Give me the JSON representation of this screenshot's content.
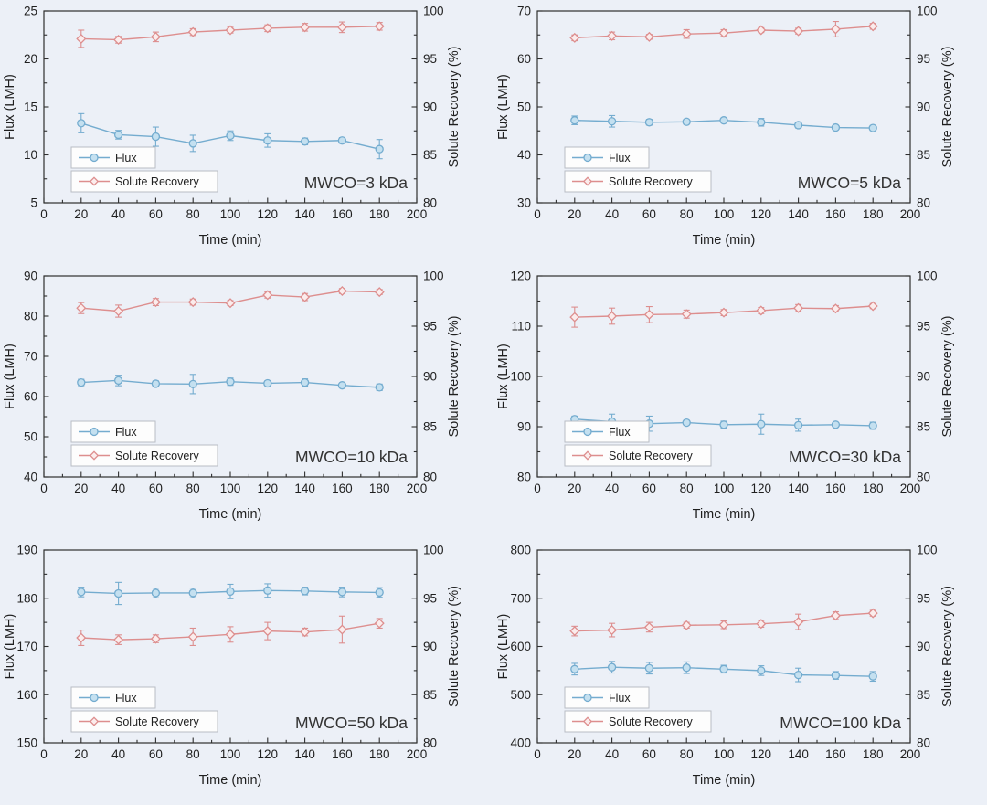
{
  "figure": {
    "name": "MWCO membrane comparison figure",
    "background": "#ecf0f7",
    "styles": {
      "axis_color": "#2f2f2f",
      "text_color": "#1f1f1f",
      "annotation_color": "#333333",
      "flux_color": "#74accf",
      "flux_fill": "#c4e0f0",
      "recovery_color": "#dd8e8e",
      "recovery_fill": "#fbecec",
      "legend_bg": "#fdfdfd",
      "legend_border": "#b9bdc4"
    }
  },
  "chart_data": [
    {
      "type": "line",
      "annotation": "MWCO=3 kDa",
      "xlabel": "Time (min)",
      "ylabel_left": "Flux (LMH)",
      "ylabel_right": "Solute Recovery (%)",
      "xlim": [
        0,
        200
      ],
      "xticks": [
        0,
        20,
        40,
        60,
        80,
        100,
        120,
        140,
        160,
        180,
        200
      ],
      "ylim_left": [
        5,
        25
      ],
      "yticks_left": [
        5,
        10,
        15,
        20,
        25
      ],
      "ylim_right": [
        80,
        100
      ],
      "yticks_right": [
        80,
        85,
        90,
        95,
        100
      ],
      "x": [
        20,
        40,
        60,
        80,
        100,
        120,
        140,
        160,
        180
      ],
      "legend_position": "bottom-left",
      "grid": false,
      "series": [
        {
          "name": "Flux",
          "axis": "left",
          "marker": "circle",
          "values": [
            13.3,
            12.1,
            11.9,
            11.2,
            12.0,
            11.5,
            11.4,
            11.5,
            10.6
          ],
          "errors": [
            1.0,
            0.45,
            1.0,
            0.85,
            0.5,
            0.7,
            0.35,
            0.3,
            1.0
          ]
        },
        {
          "name": "Solute Recovery",
          "axis": "right",
          "marker": "diamond",
          "values": [
            97.1,
            97.0,
            97.3,
            97.8,
            98.0,
            98.2,
            98.3,
            98.3,
            98.4
          ],
          "errors": [
            0.9,
            0.35,
            0.5,
            0.35,
            0.3,
            0.35,
            0.4,
            0.55,
            0.4
          ]
        }
      ]
    },
    {
      "type": "line",
      "annotation": "MWCO=5 kDa",
      "xlabel": "Time (min)",
      "ylabel_left": "Flux (LMH)",
      "ylabel_right": "Solute Recovery (%)",
      "xlim": [
        0,
        200
      ],
      "xticks": [
        0,
        20,
        40,
        60,
        80,
        100,
        120,
        140,
        160,
        180,
        200
      ],
      "ylim_left": [
        30,
        70
      ],
      "yticks_left": [
        30,
        40,
        50,
        60,
        70
      ],
      "ylim_right": [
        80,
        100
      ],
      "yticks_right": [
        80,
        85,
        90,
        95,
        100
      ],
      "x": [
        20,
        40,
        60,
        80,
        100,
        120,
        140,
        160,
        180
      ],
      "legend_position": "bottom-left",
      "grid": false,
      "series": [
        {
          "name": "Flux",
          "axis": "left",
          "marker": "circle",
          "values": [
            47.2,
            47.0,
            46.8,
            46.9,
            47.2,
            46.8,
            46.2,
            45.7,
            45.6
          ],
          "errors": [
            0.9,
            1.2,
            0.6,
            0.3,
            0.3,
            0.8,
            0.6,
            0.2,
            0.5
          ]
        },
        {
          "name": "Solute Recovery",
          "axis": "right",
          "marker": "diamond",
          "values": [
            97.2,
            97.4,
            97.3,
            97.6,
            97.7,
            98.0,
            97.9,
            98.1,
            98.4
          ],
          "errors": [
            0.3,
            0.4,
            0.25,
            0.45,
            0.35,
            0.25,
            0.3,
            0.8,
            0.3
          ]
        }
      ]
    },
    {
      "type": "line",
      "annotation": "MWCO=10 kDa",
      "xlabel": "Time (min)",
      "ylabel_left": "Flux (LMH)",
      "ylabel_right": "Solute Recovery (%)",
      "xlim": [
        0,
        200
      ],
      "xticks": [
        0,
        20,
        40,
        60,
        80,
        100,
        120,
        140,
        160,
        180,
        200
      ],
      "ylim_left": [
        40,
        90
      ],
      "yticks_left": [
        40,
        50,
        60,
        70,
        80,
        90
      ],
      "ylim_right": [
        80,
        100
      ],
      "yticks_right": [
        80,
        85,
        90,
        95,
        100
      ],
      "x": [
        20,
        40,
        60,
        80,
        100,
        120,
        140,
        160,
        180
      ],
      "legend_position": "bottom-left",
      "grid": false,
      "series": [
        {
          "name": "Flux",
          "axis": "left",
          "marker": "circle",
          "values": [
            63.5,
            64.0,
            63.2,
            63.1,
            63.7,
            63.3,
            63.5,
            62.8,
            62.3
          ],
          "errors": [
            0.8,
            1.3,
            0.7,
            2.4,
            0.9,
            0.6,
            0.9,
            0.5,
            0.8
          ]
        },
        {
          "name": "Solute Recovery",
          "axis": "right",
          "marker": "diamond",
          "values": [
            96.8,
            96.5,
            97.4,
            97.4,
            97.3,
            98.1,
            97.9,
            98.5,
            98.4
          ],
          "errors": [
            0.55,
            0.6,
            0.35,
            0.3,
            0.25,
            0.3,
            0.35,
            0.25,
            0.25
          ]
        }
      ]
    },
    {
      "type": "line",
      "annotation": "MWCO=30 kDa",
      "xlabel": "Time (min)",
      "ylabel_left": "Flux (LMH)",
      "ylabel_right": "Solute Recovery (%)",
      "xlim": [
        0,
        200
      ],
      "xticks": [
        0,
        20,
        40,
        60,
        80,
        100,
        120,
        140,
        160,
        180,
        200
      ],
      "ylim_left": [
        80,
        120
      ],
      "yticks_left": [
        80,
        90,
        100,
        110,
        120
      ],
      "ylim_right": [
        80,
        100
      ],
      "yticks_right": [
        80,
        85,
        90,
        95,
        100
      ],
      "x": [
        20,
        40,
        60,
        80,
        100,
        120,
        140,
        160,
        180
      ],
      "legend_position": "bottom-left",
      "grid": false,
      "series": [
        {
          "name": "Flux",
          "axis": "left",
          "marker": "circle",
          "values": [
            91.5,
            91.0,
            90.6,
            90.8,
            90.4,
            90.5,
            90.3,
            90.4,
            90.2
          ],
          "errors": [
            0.6,
            1.5,
            1.5,
            0.4,
            0.7,
            2.0,
            1.2,
            0.3,
            0.7
          ]
        },
        {
          "name": "Solute Recovery",
          "axis": "right",
          "marker": "diamond",
          "values": [
            95.9,
            96.0,
            96.15,
            96.2,
            96.35,
            96.55,
            96.8,
            96.75,
            97.0
          ],
          "errors": [
            1.0,
            0.8,
            0.8,
            0.4,
            0.3,
            0.3,
            0.35,
            0.3,
            0.25
          ]
        }
      ]
    },
    {
      "type": "line",
      "annotation": "MWCO=50 kDa",
      "xlabel": "Time (min)",
      "ylabel_left": "Flux (LMH)",
      "ylabel_right": "Solute Recovery (%)",
      "xlim": [
        0,
        200
      ],
      "xticks": [
        0,
        20,
        40,
        60,
        80,
        100,
        120,
        140,
        160,
        180,
        200
      ],
      "ylim_left": [
        150,
        190
      ],
      "yticks_left": [
        150,
        160,
        170,
        180,
        190
      ],
      "ylim_right": [
        80,
        100
      ],
      "yticks_right": [
        80,
        85,
        90,
        95,
        100
      ],
      "x": [
        20,
        40,
        60,
        80,
        100,
        120,
        140,
        160,
        180
      ],
      "legend_position": "bottom-left",
      "grid": false,
      "series": [
        {
          "name": "Flux",
          "axis": "left",
          "marker": "circle",
          "values": [
            181.3,
            181.0,
            181.1,
            181.1,
            181.4,
            181.6,
            181.5,
            181.3,
            181.2
          ],
          "errors": [
            1.0,
            2.3,
            1.0,
            1.0,
            1.5,
            1.4,
            0.8,
            1.0,
            1.0
          ]
        },
        {
          "name": "Solute Recovery",
          "axis": "right",
          "marker": "diamond",
          "values": [
            90.9,
            90.7,
            90.8,
            91.0,
            91.25,
            91.6,
            91.5,
            91.75,
            92.4
          ],
          "errors": [
            0.8,
            0.5,
            0.4,
            0.9,
            0.8,
            0.9,
            0.4,
            1.4,
            0.5
          ]
        }
      ]
    },
    {
      "type": "line",
      "annotation": "MWCO=100 kDa",
      "xlabel": "Time (min)",
      "ylabel_left": "Flux (LMH)",
      "ylabel_right": "Solute Recovery (%)",
      "xlim": [
        0,
        200
      ],
      "xticks": [
        0,
        20,
        40,
        60,
        80,
        100,
        120,
        140,
        160,
        180,
        200
      ],
      "ylim_left": [
        400,
        800
      ],
      "yticks_left": [
        400,
        500,
        600,
        700,
        800
      ],
      "ylim_right": [
        80,
        100
      ],
      "yticks_right": [
        80,
        85,
        90,
        95,
        100
      ],
      "x": [
        20,
        40,
        60,
        80,
        100,
        120,
        140,
        160,
        180
      ],
      "legend_position": "bottom-left",
      "grid": false,
      "series": [
        {
          "name": "Flux",
          "axis": "left",
          "marker": "circle",
          "values": [
            553,
            557,
            555,
            556,
            553,
            550,
            541,
            540,
            538
          ],
          "errors": [
            12,
            12,
            12,
            12,
            8,
            10,
            14,
            8,
            10
          ]
        },
        {
          "name": "Solute Recovery",
          "axis": "right",
          "marker": "diamond",
          "values": [
            91.6,
            91.7,
            92.0,
            92.2,
            92.25,
            92.35,
            92.55,
            93.2,
            93.45
          ],
          "errors": [
            0.5,
            0.7,
            0.5,
            0.3,
            0.4,
            0.35,
            0.8,
            0.4,
            0.3
          ]
        }
      ]
    }
  ],
  "legend": {
    "flux_label": "Flux",
    "recovery_label": "Solute Recovery"
  }
}
